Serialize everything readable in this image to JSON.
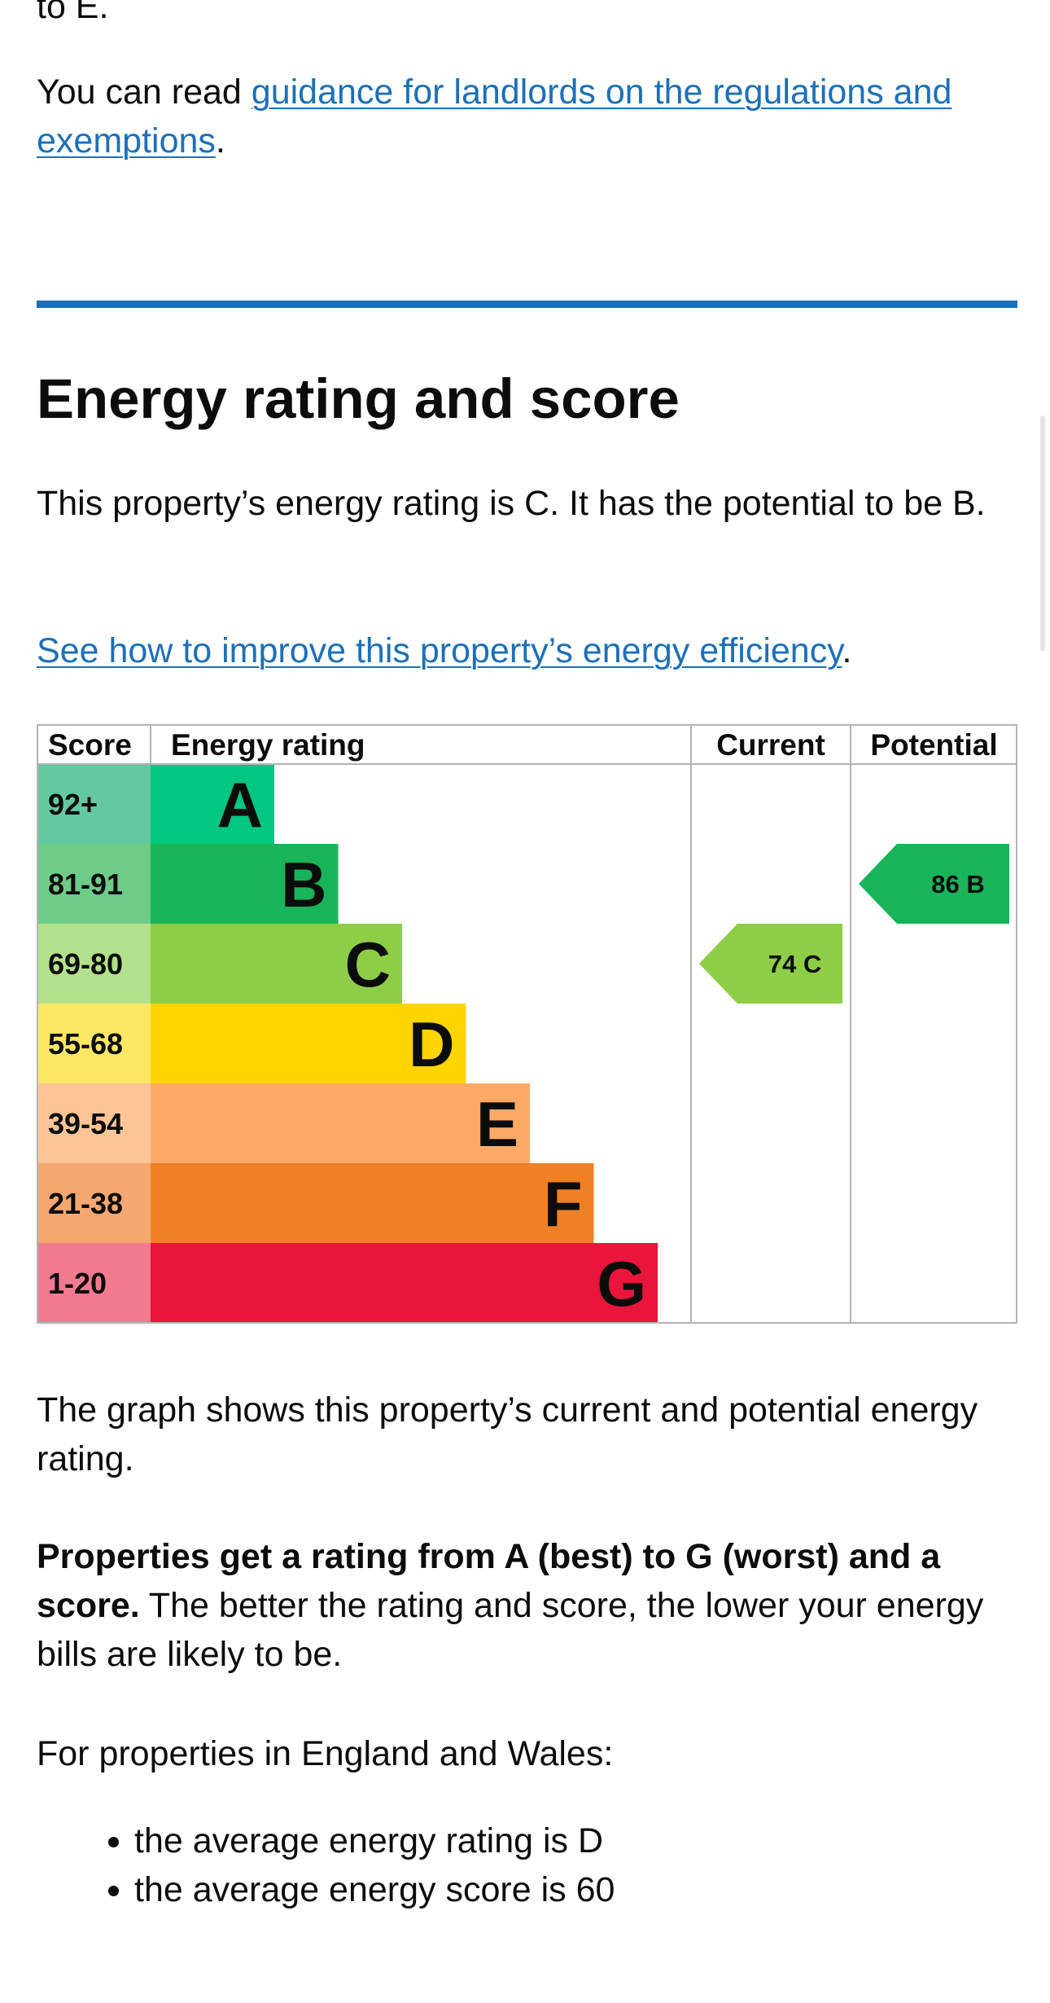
{
  "intro": {
    "fragment": "to E.",
    "guidance_prefix": "You can read ",
    "guidance_link": "guidance for landlords on the regulations and exemptions",
    "guidance_suffix": "."
  },
  "section": {
    "heading": "Energy rating and score",
    "rating_sentence": "This property’s energy rating is C. It has the potential to be B.",
    "improve_link": "See how to improve this property’s energy efficiency",
    "improve_suffix": "."
  },
  "chart_data": {
    "type": "bar",
    "headers": {
      "score": "Score",
      "rating": "Energy rating",
      "current": "Current",
      "potential": "Potential"
    },
    "bands": [
      {
        "letter": "A",
        "range": "92+",
        "band_color": "#00c781",
        "score_color": "#64c8a0"
      },
      {
        "letter": "B",
        "range": "81-91",
        "band_color": "#19b459",
        "score_color": "#6fcb88"
      },
      {
        "letter": "C",
        "range": "69-80",
        "band_color": "#8dce46",
        "score_color": "#b3e08a"
      },
      {
        "letter": "D",
        "range": "55-68",
        "band_color": "#ffd500",
        "score_color": "#ffe766"
      },
      {
        "letter": "E",
        "range": "39-54",
        "band_color": "#fcaa65",
        "score_color": "#fdc496"
      },
      {
        "letter": "F",
        "range": "21-38",
        "band_color": "#ef8023",
        "score_color": "#f4a870"
      },
      {
        "letter": "G",
        "range": "1-20",
        "band_color": "#e9153b",
        "score_color": "#f27a8f"
      }
    ],
    "current": {
      "score": 74,
      "letter": "C",
      "color": "#8dce46"
    },
    "potential": {
      "score": 86,
      "letter": "B",
      "color": "#19b459"
    }
  },
  "explanation": {
    "graph_note": "The graph shows this property’s current and potential energy rating.",
    "bold_lead": "Properties get a rating from A (best) to G (worst) and a score.",
    "rest": " The better the rating and score, the lower your energy bills are likely to be.",
    "region": "For properties in England and Wales:",
    "bullets": [
      "the average energy rating is D",
      "the average energy score is 60"
    ]
  }
}
